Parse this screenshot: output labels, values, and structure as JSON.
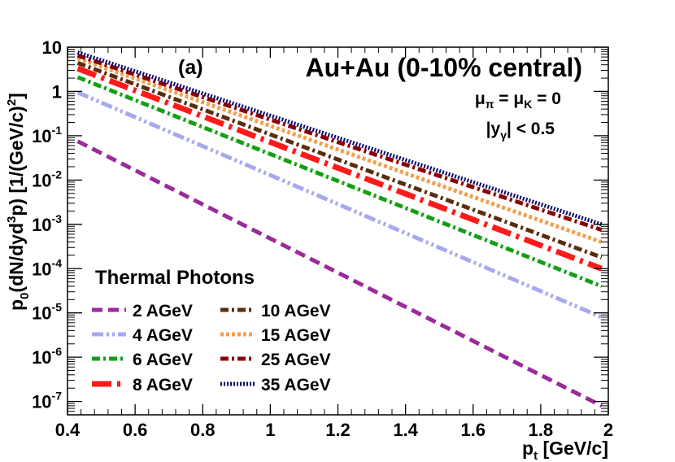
{
  "chart_data": {
    "type": "line",
    "panel_label": "(a)",
    "title": "Au+Au (0-10% central)",
    "annotations": {
      "mu_line": {
        "mu1": "μ",
        "sub1": "π",
        "eq1": " = ",
        "mu2": "μ",
        "sub2": "K",
        "eq2": " = 0"
      },
      "rapidity": {
        "left": "|y",
        "sub": "γ",
        "right": "| < 0.5"
      }
    },
    "xlabel": {
      "main": "p",
      "sub": "t",
      "rest": " [GeV/c]"
    },
    "ylabel": {
      "a": "p",
      "a_sub": "0",
      "b": "(dN/dyd",
      "b_sup": "3",
      "c": "p) [1/(GeV/c)",
      "c_sup": "2",
      "d": "]"
    },
    "xlim": [
      0.4,
      2.0
    ],
    "ylim": [
      5e-08,
      10
    ],
    "yscale": "log",
    "x_ticks": [
      0.4,
      0.6,
      0.8,
      1.0,
      1.2,
      1.4,
      1.6,
      1.8,
      2.0
    ],
    "x_tick_labels": [
      "0.4",
      "0.6",
      "0.8",
      "1",
      "1.2",
      "1.4",
      "1.6",
      "1.8",
      "2"
    ],
    "y_ticks": [
      {
        "value": 10,
        "base": "10",
        "exp": ""
      },
      {
        "value": 1,
        "base": "1",
        "exp": ""
      },
      {
        "value": 0.1,
        "base": "10",
        "exp": "-1"
      },
      {
        "value": 0.01,
        "base": "10",
        "exp": "-2"
      },
      {
        "value": 0.001,
        "base": "10",
        "exp": "-3"
      },
      {
        "value": 0.0001,
        "base": "10",
        "exp": "-4"
      },
      {
        "value": 1e-05,
        "base": "10",
        "exp": "-5"
      },
      {
        "value": 1e-06,
        "base": "10",
        "exp": "-6"
      },
      {
        "value": 1e-07,
        "base": "10",
        "exp": "-7"
      }
    ],
    "legend_title": "Thermal Photons",
    "legend_placement": "bottom-left",
    "series": [
      {
        "name": "2 AGeV",
        "color": "#9b2a9b",
        "dash": "dashed",
        "x": [
          0.43,
          1.98
        ],
        "y": [
          0.075,
          8e-08
        ]
      },
      {
        "name": "4 AGeV",
        "color": "#a8a8f0",
        "dash": "dash-dot-dot",
        "x": [
          0.43,
          1.98
        ],
        "y": [
          0.95,
          8e-06
        ]
      },
      {
        "name": "6 AGeV",
        "color": "#12a012",
        "dash": "dash-dot",
        "x": [
          0.43,
          1.98
        ],
        "y": [
          2.1,
          4e-05
        ]
      },
      {
        "name": "8 AGeV",
        "color": "#ff1a1a",
        "dash": "long-dash-dot",
        "x": [
          0.43,
          1.98
        ],
        "y": [
          3.3,
          0.0001
        ]
      },
      {
        "name": "10 AGeV",
        "color": "#5a2d0c",
        "dash": "dash-dot",
        "x": [
          0.43,
          1.98
        ],
        "y": [
          4.4,
          0.00018
        ]
      },
      {
        "name": "15 AGeV",
        "color": "#f2a050",
        "dash": "dotted",
        "x": [
          0.43,
          1.98
        ],
        "y": [
          5.6,
          0.0004
        ]
      },
      {
        "name": "25 AGeV",
        "color": "#8b0000",
        "dash": "dash-dot",
        "x": [
          0.43,
          1.98
        ],
        "y": [
          6.5,
          0.00075
        ]
      },
      {
        "name": "35 AGeV",
        "color": "#0a0a6e",
        "dash": "fine-dotted",
        "x": [
          0.43,
          1.98
        ],
        "y": [
          7.6,
          0.001
        ]
      }
    ]
  }
}
